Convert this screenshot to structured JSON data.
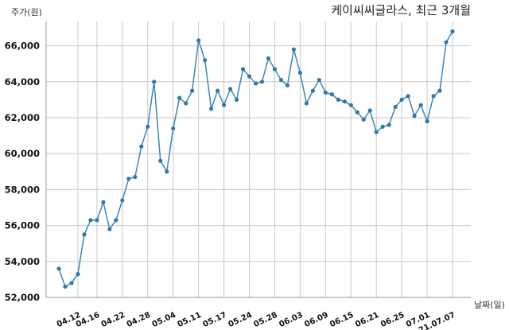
{
  "chart_data": {
    "type": "line",
    "title": "케이씨씨글라스, 최근 3개월",
    "ylabel": "주가(원)",
    "xlabel": "날짜(일)",
    "ylim": [
      52000,
      67000
    ],
    "y_ticks": [
      52000,
      54000,
      56000,
      58000,
      60000,
      62000,
      64000,
      66000
    ],
    "y_tick_labels": [
      "52,000",
      "54,000",
      "56,000",
      "58,000",
      "60,000",
      "62,000",
      "64,000",
      "66,000"
    ],
    "x_tick_labels": [
      "04.12",
      "04.16",
      "04.22",
      "04.28",
      "05.04",
      "05.11",
      "05.17",
      "05.24",
      "05.28",
      "06.03",
      "06.09",
      "06.15",
      "06.21",
      "06.25",
      "07.01",
      "21.07.07"
    ],
    "x_tick_index": [
      3,
      6,
      10,
      14,
      18,
      22,
      26,
      30,
      34,
      38,
      42,
      46,
      50,
      54,
      58,
      62
    ],
    "grid": true,
    "series": [
      {
        "color": "#3f86b5",
        "values": [
          53600,
          52600,
          52800,
          53300,
          55500,
          56300,
          56300,
          57300,
          55800,
          56300,
          57400,
          58600,
          58700,
          60400,
          61500,
          64000,
          59600,
          59000,
          61400,
          63100,
          62800,
          63500,
          66300,
          65200,
          62500,
          63500,
          62700,
          63600,
          63000,
          64700,
          64300,
          63900,
          64000,
          65300,
          64700,
          64100,
          63800,
          65800,
          64500,
          62800,
          63500,
          64100,
          63400,
          63300,
          63000,
          62900,
          62700,
          62300,
          61900,
          62400,
          61200,
          61500,
          61600,
          62600,
          63000,
          63200,
          62100,
          62700,
          61800,
          63200,
          63500,
          66200,
          66800
        ]
      }
    ]
  }
}
